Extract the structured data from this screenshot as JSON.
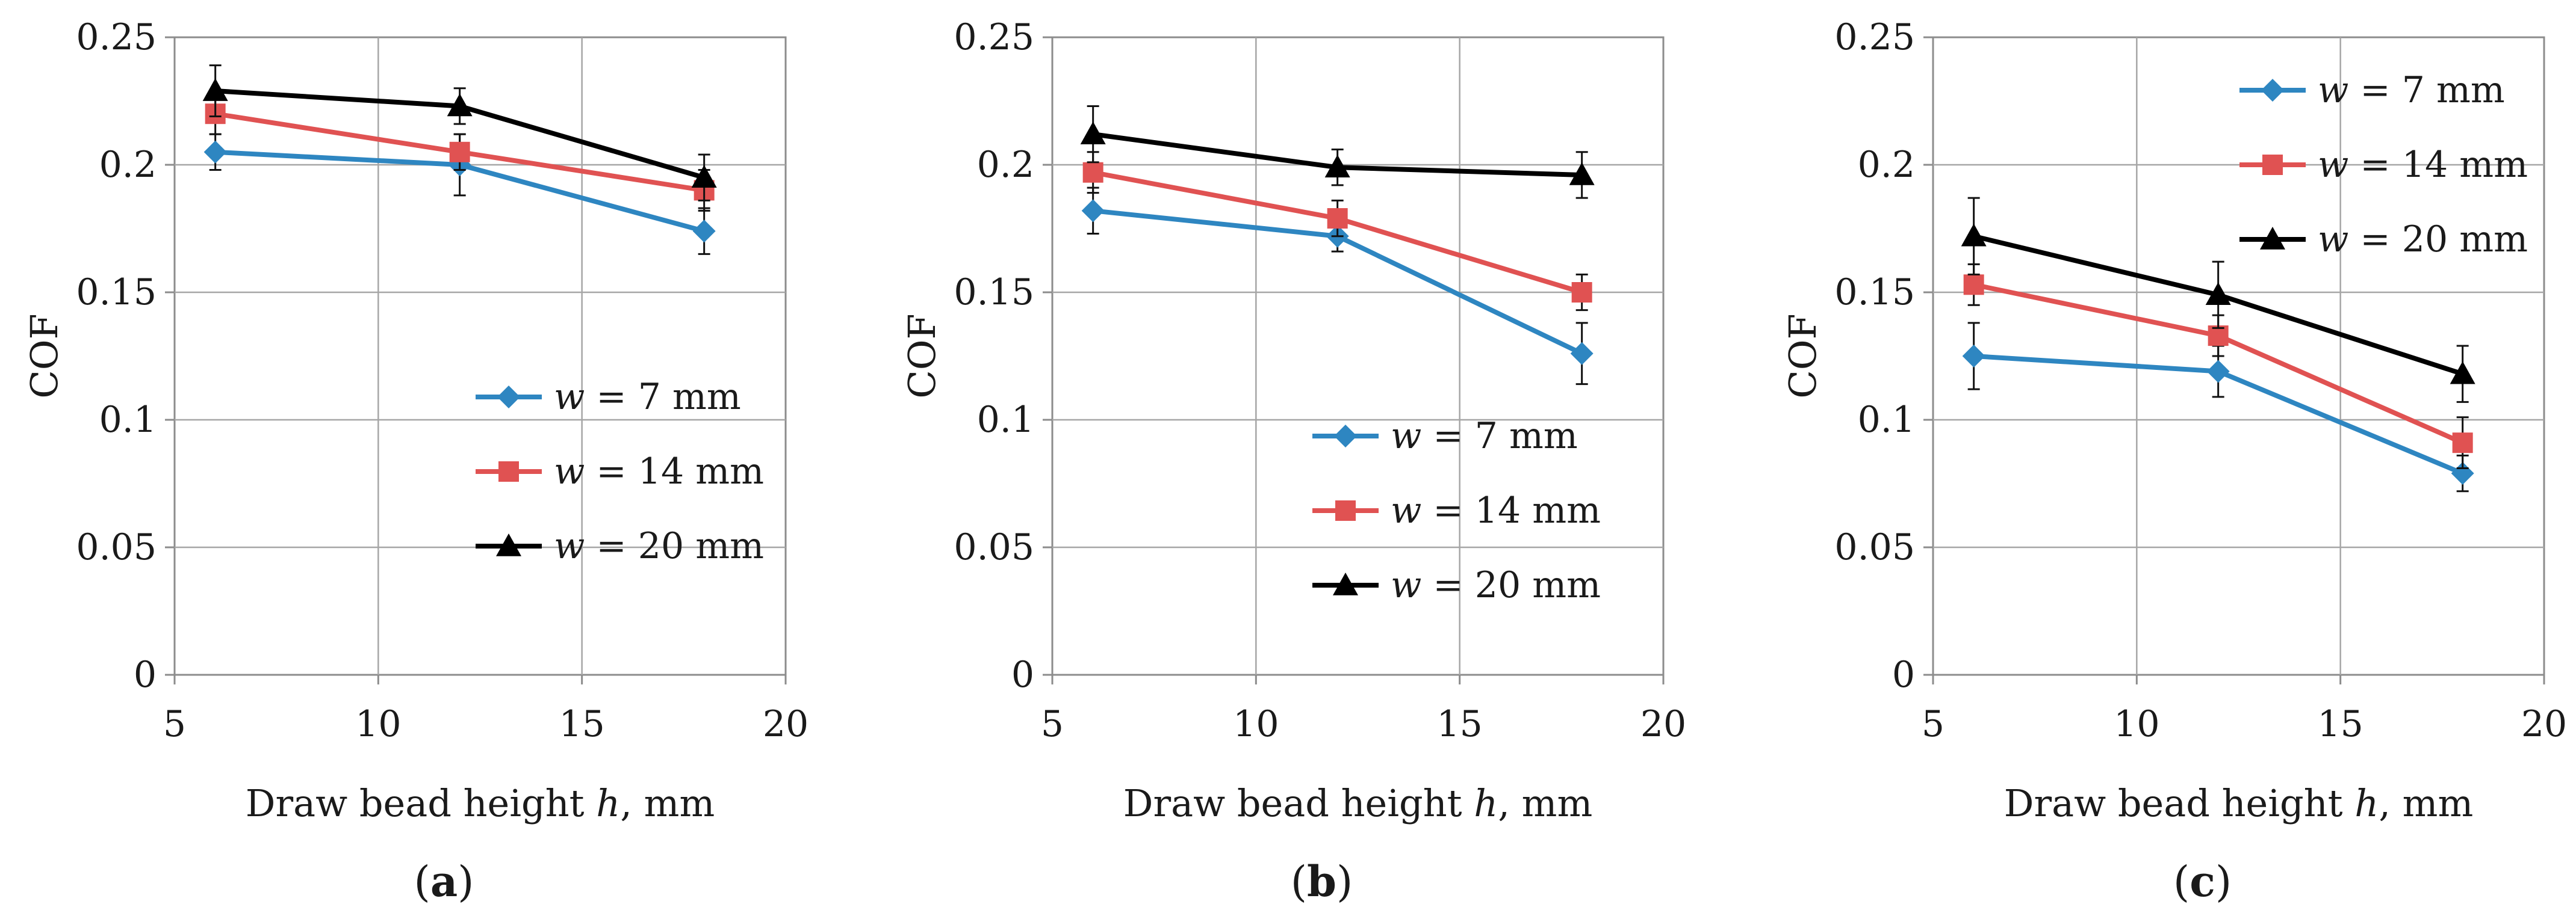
{
  "chart_data": [
    {
      "type": "line",
      "panel_label": "(a)",
      "panel_letter": "a",
      "xlabel_prefix": "Draw bead height ",
      "xlabel_var": "h",
      "xlabel_suffix": ", mm",
      "ylabel": "COF",
      "xlim": [
        5,
        20
      ],
      "ylim": [
        0,
        0.25
      ],
      "xticks": [
        "5",
        "10",
        "15",
        "20"
      ],
      "yticks": [
        "0",
        "0.05",
        "0.1",
        "0.15",
        "0.2",
        "0.25"
      ],
      "grid": true,
      "legend_position": "lower-right",
      "x": [
        6,
        12,
        18
      ],
      "series": [
        {
          "var": "w",
          "name_rest": " = 7 mm",
          "color": "#2e86c1",
          "marker": "diamond",
          "values": [
            0.205,
            0.2,
            0.174
          ],
          "errors": [
            0.007,
            0.012,
            0.009
          ]
        },
        {
          "var": "w",
          "name_rest": " = 14 mm",
          "color": "#e05252",
          "marker": "square",
          "values": [
            0.22,
            0.205,
            0.19
          ],
          "errors": [
            0.008,
            0.007,
            0.008
          ]
        },
        {
          "var": "w",
          "name_rest": " = 20 mm",
          "color": "#000000",
          "marker": "triangle",
          "values": [
            0.229,
            0.223,
            0.195
          ],
          "errors": [
            0.01,
            0.007,
            0.009
          ]
        }
      ]
    },
    {
      "type": "line",
      "panel_label": "(b)",
      "panel_letter": "b",
      "xlabel_prefix": "Draw bead height ",
      "xlabel_var": "h",
      "xlabel_suffix": ", mm",
      "ylabel": "COF",
      "xlim": [
        5,
        20
      ],
      "ylim": [
        0,
        0.25
      ],
      "xticks": [
        "5",
        "10",
        "15",
        "20"
      ],
      "yticks": [
        "0",
        "0.05",
        "0.1",
        "0.15",
        "0.2",
        "0.25"
      ],
      "grid": true,
      "legend_position": "lower-right",
      "x": [
        6,
        12,
        18
      ],
      "series": [
        {
          "var": "w",
          "name_rest": " = 7 mm",
          "color": "#2e86c1",
          "marker": "diamond",
          "values": [
            0.182,
            0.172,
            0.126
          ],
          "errors": [
            0.009,
            0.006,
            0.012
          ]
        },
        {
          "var": "w",
          "name_rest": " = 14 mm",
          "color": "#e05252",
          "marker": "square",
          "values": [
            0.197,
            0.179,
            0.15
          ],
          "errors": [
            0.008,
            0.007,
            0.007
          ]
        },
        {
          "var": "w",
          "name_rest": " = 20 mm",
          "color": "#000000",
          "marker": "triangle",
          "values": [
            0.212,
            0.199,
            0.196
          ],
          "errors": [
            0.011,
            0.007,
            0.009
          ]
        }
      ]
    },
    {
      "type": "line",
      "panel_label": "(c)",
      "panel_letter": "c",
      "xlabel_prefix": "Draw bead height ",
      "xlabel_var": "h",
      "xlabel_suffix": ", mm",
      "ylabel": "COF",
      "xlim": [
        5,
        20
      ],
      "ylim": [
        0,
        0.25
      ],
      "xticks": [
        "5",
        "10",
        "15",
        "20"
      ],
      "yticks": [
        "0",
        "0.05",
        "0.1",
        "0.15",
        "0.2",
        "0.25"
      ],
      "grid": true,
      "legend_position": "upper-right",
      "x": [
        6,
        12,
        18
      ],
      "series": [
        {
          "var": "w",
          "name_rest": " = 7 mm",
          "color": "#2e86c1",
          "marker": "diamond",
          "values": [
            0.125,
            0.119,
            0.079
          ],
          "errors": [
            0.013,
            0.01,
            0.007
          ]
        },
        {
          "var": "w",
          "name_rest": " = 14 mm",
          "color": "#e05252",
          "marker": "square",
          "values": [
            0.153,
            0.133,
            0.091
          ],
          "errors": [
            0.008,
            0.008,
            0.01
          ]
        },
        {
          "var": "w",
          "name_rest": " = 20 mm",
          "color": "#000000",
          "marker": "triangle",
          "values": [
            0.172,
            0.149,
            0.118
          ],
          "errors": [
            0.015,
            0.013,
            0.011
          ]
        }
      ]
    }
  ]
}
